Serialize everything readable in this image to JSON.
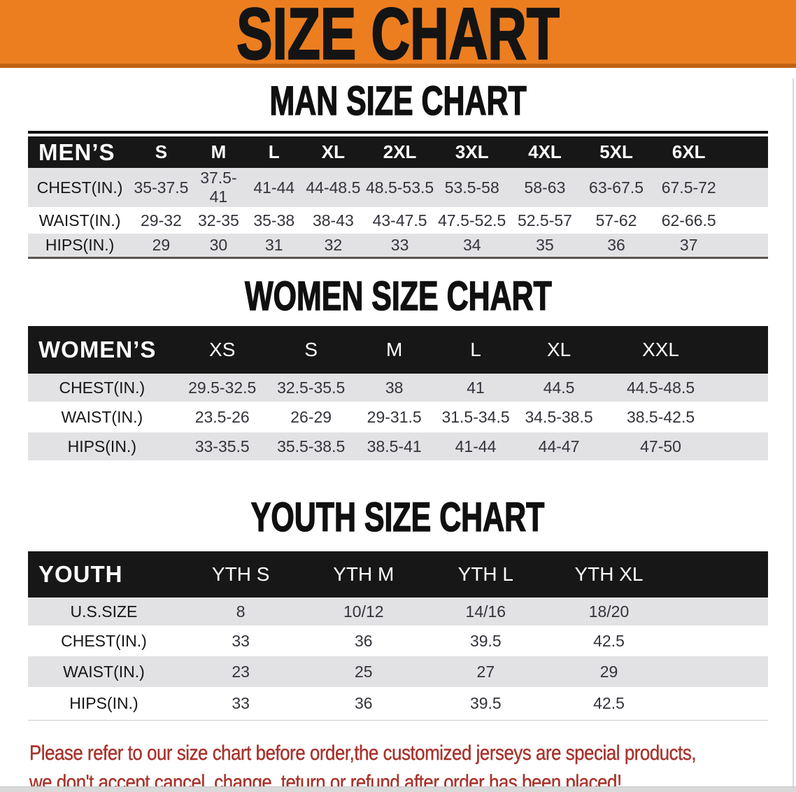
{
  "banner": {
    "title": "SIZE CHART"
  },
  "colors": {
    "banner_bg": "#EC7E20",
    "banner_edge": "#C06114",
    "header_bg": "#171717",
    "row_gray": "#E2E2E4",
    "text_red": "#A8322B"
  },
  "sections": [
    {
      "heading": "MAN SIZE CHART",
      "table": {
        "header_label": "MEN’S",
        "sizes": [
          "S",
          "M",
          "L",
          "XL",
          "2XL",
          "3XL",
          "4XL",
          "5XL",
          "6XL"
        ],
        "rows": [
          {
            "label": "CHEST(IN.)",
            "values": [
              "35-37.5",
              "37.5-41",
              "41-44",
              "44-48.5",
              "48.5-53.5",
              "53.5-58",
              "58-63",
              "63-67.5",
              "67.5-72"
            ]
          },
          {
            "label": "WAIST(IN.)",
            "values": [
              "29-32",
              "32-35",
              "35-38",
              "38-43",
              "43-47.5",
              "47.5-52.5",
              "52.5-57",
              "57-62",
              "62-66.5"
            ]
          },
          {
            "label": "HIPS(IN.)",
            "values": [
              "29",
              "30",
              "31",
              "32",
              "33",
              "34",
              "35",
              "36",
              "37"
            ]
          }
        ]
      }
    },
    {
      "heading": "WOMEN SIZE CHART",
      "table": {
        "header_label": "WOMEN’S",
        "sizes": [
          "XS",
          "S",
          "M",
          "L",
          "XL",
          "XXL"
        ],
        "rows": [
          {
            "label": "CHEST(IN.)",
            "values": [
              "29.5-32.5",
              "32.5-35.5",
              "38",
              "41",
              "44.5",
              "44.5-48.5"
            ]
          },
          {
            "label": "WAIST(IN.)",
            "values": [
              "23.5-26",
              "26-29",
              "29-31.5",
              "31.5-34.5",
              "34.5-38.5",
              "38.5-42.5"
            ]
          },
          {
            "label": "HIPS(IN.)",
            "values": [
              "33-35.5",
              "35.5-38.5",
              "38.5-41",
              "41-44",
              "44-47",
              "47-50"
            ]
          }
        ]
      }
    },
    {
      "heading": "YOUTH SIZE CHART",
      "table": {
        "header_label": "YOUTH",
        "sizes": [
          "YTH S",
          "YTH M",
          "YTH L",
          "YTH XL"
        ],
        "rows": [
          {
            "label": "U.S.SIZE",
            "values": [
              "8",
              "10/12",
              "14/16",
              "18/20"
            ]
          },
          {
            "label": "CHEST(IN.)",
            "values": [
              "33",
              "36",
              "39.5",
              "42.5"
            ]
          },
          {
            "label": "WAIST(IN.)",
            "values": [
              "23",
              "25",
              "27",
              "29"
            ]
          },
          {
            "label": "HIPS(IN.)",
            "values": [
              "33",
              "36",
              "39.5",
              "42.5"
            ]
          }
        ]
      }
    }
  ],
  "footer": {
    "line1": "Please refer to our size chart before order,the customized jerseys are special products,",
    "line2": "we don't accept cancel, change, teturn or refund after order has been placed!"
  }
}
